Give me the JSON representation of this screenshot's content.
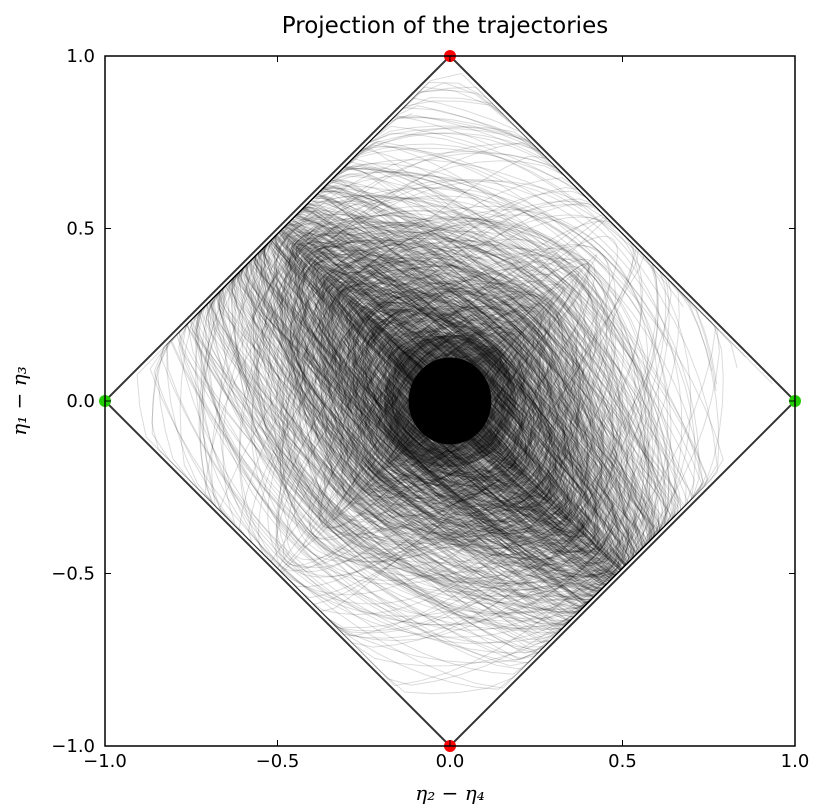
{
  "chart_data": {
    "type": "scatter",
    "title": "Projection of the trajectories",
    "xlabel": "η₂ − η₄",
    "ylabel": "η₁ − η₃",
    "xlim": [
      -1.0,
      1.0
    ],
    "ylim": [
      -1.0,
      1.0
    ],
    "xticks": [
      "−1.0",
      "−0.5",
      "0.0",
      "0.5",
      "1.0"
    ],
    "yticks": [
      "−1.0",
      "−0.5",
      "0.0",
      "0.5",
      "1.0"
    ],
    "grid": false,
    "legend": "none",
    "trajectories": {
      "boundary": [
        [
          0,
          1
        ],
        [
          1,
          0
        ],
        [
          0,
          -1
        ],
        [
          -1,
          0
        ]
      ],
      "dense_core_radius": 0.12,
      "color": "#000000"
    },
    "series": [
      {
        "marker_color": "#ff0000",
        "x": [
          0.0,
          0.0
        ],
        "y": [
          1.0,
          -1.0
        ]
      },
      {
        "marker_color": "#22cc00",
        "x": [
          -1.0,
          1.0
        ],
        "y": [
          0.0,
          0.0
        ]
      }
    ]
  }
}
